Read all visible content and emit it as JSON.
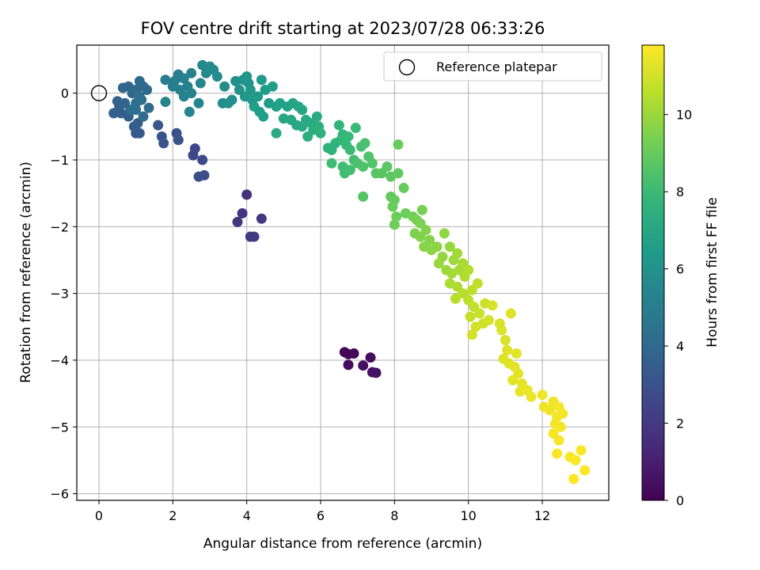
{
  "chart_data": {
    "type": "scatter",
    "title": "FOV centre drift starting at 2023/07/28 06:33:26",
    "xlabel": "Angular distance from reference (arcmin)",
    "ylabel": "Rotation from reference (arcmin)",
    "xlim": [
      -0.6,
      13.8
    ],
    "ylim": [
      -6.1,
      0.72
    ],
    "xticks": [
      0,
      2,
      4,
      6,
      8,
      10,
      12
    ],
    "yticks": [
      0,
      -1,
      -2,
      -3,
      -4,
      -5,
      -6
    ],
    "grid": true,
    "colormap": "viridis",
    "colorbar": {
      "label": "Hours from first FF file",
      "range": [
        0,
        11.8
      ],
      "ticks": [
        0,
        2,
        4,
        6,
        8,
        10
      ]
    },
    "legend": {
      "position": "top-right",
      "entries": [
        {
          "label": "Reference platepar",
          "marker": "open-circle"
        }
      ]
    },
    "reference_point": {
      "x": 0,
      "y": 0
    },
    "points": [
      {
        "x": 6.65,
        "y": -3.88,
        "c": 0.1
      },
      {
        "x": 6.75,
        "y": -3.91,
        "c": 0.2
      },
      {
        "x": 6.9,
        "y": -3.9,
        "c": 0.25
      },
      {
        "x": 6.75,
        "y": -4.07,
        "c": 0.3
      },
      {
        "x": 7.35,
        "y": -3.96,
        "c": 0.4
      },
      {
        "x": 7.15,
        "y": -4.08,
        "c": 0.45
      },
      {
        "x": 7.4,
        "y": -4.18,
        "c": 0.5
      },
      {
        "x": 7.5,
        "y": -4.19,
        "c": 0.55
      },
      {
        "x": 4.0,
        "y": -1.52,
        "c": 1.7
      },
      {
        "x": 3.88,
        "y": -1.8,
        "c": 1.8
      },
      {
        "x": 3.75,
        "y": -1.93,
        "c": 1.9
      },
      {
        "x": 4.4,
        "y": -1.88,
        "c": 1.9
      },
      {
        "x": 4.1,
        "y": -2.15,
        "c": 2.0
      },
      {
        "x": 4.2,
        "y": -2.15,
        "c": 2.05
      },
      {
        "x": 2.6,
        "y": -0.83,
        "c": 2.5
      },
      {
        "x": 2.55,
        "y": -0.93,
        "c": 2.6
      },
      {
        "x": 2.8,
        "y": -1.0,
        "c": 2.7
      },
      {
        "x": 2.7,
        "y": -1.25,
        "c": 2.8
      },
      {
        "x": 2.85,
        "y": -1.23,
        "c": 2.85
      },
      {
        "x": 2.1,
        "y": -0.6,
        "c": 3.0
      },
      {
        "x": 2.15,
        "y": -0.7,
        "c": 3.05
      },
      {
        "x": 1.7,
        "y": -0.65,
        "c": 3.1
      },
      {
        "x": 1.75,
        "y": -0.75,
        "c": 3.15
      },
      {
        "x": 1.6,
        "y": -0.48,
        "c": 3.2
      },
      {
        "x": 1.0,
        "y": -0.6,
        "c": 3.3
      },
      {
        "x": 1.1,
        "y": -0.6,
        "c": 3.35
      },
      {
        "x": 0.95,
        "y": -0.5,
        "c": 3.4
      },
      {
        "x": 1.05,
        "y": -0.45,
        "c": 3.45
      },
      {
        "x": 0.8,
        "y": -0.35,
        "c": 3.5
      },
      {
        "x": 0.6,
        "y": -0.3,
        "c": 3.55
      },
      {
        "x": 0.4,
        "y": -0.3,
        "c": 3.6
      },
      {
        "x": 0.55,
        "y": -0.2,
        "c": 3.65
      },
      {
        "x": 0.5,
        "y": -0.12,
        "c": 3.7
      },
      {
        "x": 0.7,
        "y": -0.15,
        "c": 3.75
      },
      {
        "x": 0.65,
        "y": 0.08,
        "c": 3.8
      },
      {
        "x": 0.8,
        "y": 0.1,
        "c": 3.85
      },
      {
        "x": 0.9,
        "y": 0.0,
        "c": 3.9
      },
      {
        "x": 1.0,
        "y": 0.05,
        "c": 3.95
      },
      {
        "x": 1.1,
        "y": 0.18,
        "c": 4.0
      },
      {
        "x": 1.2,
        "y": 0.1,
        "c": 4.05
      },
      {
        "x": 1.3,
        "y": 0.05,
        "c": 4.1
      },
      {
        "x": 1.15,
        "y": -0.1,
        "c": 4.1
      },
      {
        "x": 1.35,
        "y": -0.22,
        "c": 4.15
      },
      {
        "x": 1.2,
        "y": -0.35,
        "c": 4.2
      },
      {
        "x": 1.0,
        "y": -0.25,
        "c": 4.25
      },
      {
        "x": 0.85,
        "y": -0.25,
        "c": 4.3
      },
      {
        "x": 1.0,
        "y": -0.15,
        "c": 4.3
      },
      {
        "x": 1.1,
        "y": -0.05,
        "c": 4.35
      },
      {
        "x": 1.8,
        "y": 0.2,
        "c": 5.0
      },
      {
        "x": 2.0,
        "y": 0.1,
        "c": 5.05
      },
      {
        "x": 2.15,
        "y": 0.28,
        "c": 5.1
      },
      {
        "x": 2.05,
        "y": 0.18,
        "c": 5.1
      },
      {
        "x": 2.2,
        "y": 0.05,
        "c": 5.15
      },
      {
        "x": 2.3,
        "y": 0.22,
        "c": 5.2
      },
      {
        "x": 2.4,
        "y": 0.1,
        "c": 5.2
      },
      {
        "x": 2.5,
        "y": 0.3,
        "c": 5.25
      },
      {
        "x": 2.3,
        "y": -0.05,
        "c": 5.3
      },
      {
        "x": 2.5,
        "y": 0.0,
        "c": 5.3
      },
      {
        "x": 2.45,
        "y": -0.28,
        "c": 5.35
      },
      {
        "x": 2.7,
        "y": -0.15,
        "c": 5.4
      },
      {
        "x": 1.8,
        "y": -0.13,
        "c": 5.4
      },
      {
        "x": 2.75,
        "y": 0.15,
        "c": 5.45
      },
      {
        "x": 2.8,
        "y": 0.42,
        "c": 5.5
      },
      {
        "x": 2.9,
        "y": 0.3,
        "c": 5.55
      },
      {
        "x": 3.0,
        "y": 0.4,
        "c": 5.6
      },
      {
        "x": 3.1,
        "y": 0.35,
        "c": 5.65
      },
      {
        "x": 3.2,
        "y": 0.25,
        "c": 5.7
      },
      {
        "x": 3.4,
        "y": 0.1,
        "c": 5.75
      },
      {
        "x": 3.35,
        "y": -0.15,
        "c": 5.8
      },
      {
        "x": 3.6,
        "y": -0.1,
        "c": 5.85
      },
      {
        "x": 3.5,
        "y": -0.15,
        "c": 5.9
      },
      {
        "x": 3.7,
        "y": 0.18,
        "c": 5.95
      },
      {
        "x": 3.8,
        "y": 0.05,
        "c": 6.0
      },
      {
        "x": 3.9,
        "y": 0.2,
        "c": 6.05
      },
      {
        "x": 4.0,
        "y": 0.25,
        "c": 6.1
      },
      {
        "x": 4.05,
        "y": 0.15,
        "c": 6.15
      },
      {
        "x": 4.1,
        "y": 0.05,
        "c": 6.2
      },
      {
        "x": 3.95,
        "y": -0.05,
        "c": 6.25
      },
      {
        "x": 4.15,
        "y": -0.1,
        "c": 6.3
      },
      {
        "x": 4.3,
        "y": -0.05,
        "c": 6.35
      },
      {
        "x": 4.4,
        "y": 0.2,
        "c": 6.4
      },
      {
        "x": 4.5,
        "y": 0.05,
        "c": 6.45
      },
      {
        "x": 4.6,
        "y": -0.15,
        "c": 6.5
      },
      {
        "x": 4.35,
        "y": -0.28,
        "c": 6.55
      },
      {
        "x": 4.45,
        "y": -0.35,
        "c": 6.6
      },
      {
        "x": 4.2,
        "y": -0.2,
        "c": 6.6
      },
      {
        "x": 4.7,
        "y": 0.1,
        "c": 6.65
      },
      {
        "x": 4.8,
        "y": -0.2,
        "c": 6.7
      },
      {
        "x": 4.9,
        "y": -0.15,
        "c": 6.75
      },
      {
        "x": 5.1,
        "y": -0.2,
        "c": 6.8
      },
      {
        "x": 5.25,
        "y": -0.15,
        "c": 6.85
      },
      {
        "x": 5.4,
        "y": -0.2,
        "c": 6.9
      },
      {
        "x": 5.5,
        "y": -0.25,
        "c": 6.95
      },
      {
        "x": 5.0,
        "y": -0.38,
        "c": 7.0
      },
      {
        "x": 5.2,
        "y": -0.4,
        "c": 7.05
      },
      {
        "x": 5.35,
        "y": -0.48,
        "c": 7.1
      },
      {
        "x": 5.5,
        "y": -0.5,
        "c": 7.15
      },
      {
        "x": 4.8,
        "y": -0.6,
        "c": 7.2
      },
      {
        "x": 5.6,
        "y": -0.4,
        "c": 7.2
      },
      {
        "x": 5.75,
        "y": -0.45,
        "c": 7.25
      },
      {
        "x": 5.9,
        "y": -0.35,
        "c": 7.3
      },
      {
        "x": 5.8,
        "y": -0.55,
        "c": 7.35
      },
      {
        "x": 5.65,
        "y": -0.65,
        "c": 7.4
      },
      {
        "x": 5.95,
        "y": -0.5,
        "c": 7.45
      },
      {
        "x": 6.0,
        "y": -0.6,
        "c": 7.5
      },
      {
        "x": 6.2,
        "y": -0.82,
        "c": 7.55
      },
      {
        "x": 6.3,
        "y": -0.85,
        "c": 7.6
      },
      {
        "x": 6.4,
        "y": -0.75,
        "c": 7.65
      },
      {
        "x": 6.5,
        "y": -0.48,
        "c": 7.7
      },
      {
        "x": 6.55,
        "y": -0.7,
        "c": 7.75
      },
      {
        "x": 6.6,
        "y": -0.62,
        "c": 7.8
      },
      {
        "x": 6.7,
        "y": -0.78,
        "c": 7.85
      },
      {
        "x": 6.75,
        "y": -0.65,
        "c": 7.9
      },
      {
        "x": 6.8,
        "y": -0.85,
        "c": 7.95
      },
      {
        "x": 6.95,
        "y": -0.52,
        "c": 8.0
      },
      {
        "x": 6.3,
        "y": -1.05,
        "c": 8.05
      },
      {
        "x": 6.6,
        "y": -1.1,
        "c": 8.1
      },
      {
        "x": 6.65,
        "y": -1.2,
        "c": 8.15
      },
      {
        "x": 6.8,
        "y": -1.15,
        "c": 8.2
      },
      {
        "x": 6.9,
        "y": -1.0,
        "c": 8.25
      },
      {
        "x": 7.1,
        "y": -0.8,
        "c": 8.3
      },
      {
        "x": 7.2,
        "y": -0.75,
        "c": 8.35
      },
      {
        "x": 7.0,
        "y": -1.05,
        "c": 8.4
      },
      {
        "x": 7.15,
        "y": -1.1,
        "c": 8.45
      },
      {
        "x": 7.3,
        "y": -0.95,
        "c": 8.5
      },
      {
        "x": 7.4,
        "y": -1.05,
        "c": 8.55
      },
      {
        "x": 7.15,
        "y": -1.55,
        "c": 8.6
      },
      {
        "x": 7.5,
        "y": -1.2,
        "c": 8.65
      },
      {
        "x": 7.65,
        "y": -1.2,
        "c": 8.7
      },
      {
        "x": 7.8,
        "y": -1.1,
        "c": 8.75
      },
      {
        "x": 7.9,
        "y": -1.25,
        "c": 8.8
      },
      {
        "x": 8.1,
        "y": -1.2,
        "c": 8.85
      },
      {
        "x": 7.9,
        "y": -1.55,
        "c": 8.9
      },
      {
        "x": 8.0,
        "y": -1.6,
        "c": 8.95
      },
      {
        "x": 8.1,
        "y": -0.77,
        "c": 9.0
      },
      {
        "x": 8.25,
        "y": -1.42,
        "c": 9.0
      },
      {
        "x": 7.95,
        "y": -1.7,
        "c": 9.05
      },
      {
        "x": 8.05,
        "y": -1.85,
        "c": 9.1
      },
      {
        "x": 8.3,
        "y": -1.8,
        "c": 9.15
      },
      {
        "x": 8.0,
        "y": -1.97,
        "c": 9.2
      },
      {
        "x": 8.5,
        "y": -1.85,
        "c": 9.25
      },
      {
        "x": 8.6,
        "y": -1.9,
        "c": 9.3
      },
      {
        "x": 8.75,
        "y": -1.75,
        "c": 9.35
      },
      {
        "x": 8.7,
        "y": -1.95,
        "c": 9.4
      },
      {
        "x": 8.55,
        "y": -2.1,
        "c": 9.45
      },
      {
        "x": 8.7,
        "y": -2.15,
        "c": 9.5
      },
      {
        "x": 8.85,
        "y": -2.05,
        "c": 9.55
      },
      {
        "x": 8.95,
        "y": -2.2,
        "c": 9.6
      },
      {
        "x": 8.8,
        "y": -2.3,
        "c": 9.65
      },
      {
        "x": 9.0,
        "y": -2.35,
        "c": 9.7
      },
      {
        "x": 9.15,
        "y": -2.3,
        "c": 9.75
      },
      {
        "x": 9.35,
        "y": -2.1,
        "c": 9.8
      },
      {
        "x": 9.3,
        "y": -2.45,
        "c": 9.85
      },
      {
        "x": 9.5,
        "y": -2.3,
        "c": 9.9
      },
      {
        "x": 9.2,
        "y": -2.55,
        "c": 9.95
      },
      {
        "x": 9.4,
        "y": -2.65,
        "c": 10.0
      },
      {
        "x": 9.6,
        "y": -2.5,
        "c": 10.05
      },
      {
        "x": 9.7,
        "y": -2.4,
        "c": 10.1
      },
      {
        "x": 9.55,
        "y": -2.7,
        "c": 10.15
      },
      {
        "x": 9.75,
        "y": -2.65,
        "c": 10.2
      },
      {
        "x": 9.85,
        "y": -2.55,
        "c": 10.25
      },
      {
        "x": 9.5,
        "y": -2.85,
        "c": 10.3
      },
      {
        "x": 9.7,
        "y": -2.9,
        "c": 10.35
      },
      {
        "x": 9.9,
        "y": -2.75,
        "c": 10.4
      },
      {
        "x": 10.0,
        "y": -2.65,
        "c": 10.45
      },
      {
        "x": 9.65,
        "y": -3.08,
        "c": 10.5
      },
      {
        "x": 9.85,
        "y": -3.0,
        "c": 10.55
      },
      {
        "x": 10.0,
        "y": -3.1,
        "c": 10.6
      },
      {
        "x": 10.1,
        "y": -2.95,
        "c": 10.65
      },
      {
        "x": 10.25,
        "y": -2.85,
        "c": 10.7
      },
      {
        "x": 10.15,
        "y": -3.2,
        "c": 10.75
      },
      {
        "x": 10.05,
        "y": -3.35,
        "c": 10.8
      },
      {
        "x": 10.3,
        "y": -3.3,
        "c": 10.85
      },
      {
        "x": 10.45,
        "y": -3.15,
        "c": 10.9
      },
      {
        "x": 10.4,
        "y": -3.45,
        "c": 10.95
      },
      {
        "x": 10.2,
        "y": -3.5,
        "c": 11.0
      },
      {
        "x": 10.1,
        "y": -3.62,
        "c": 11.0
      },
      {
        "x": 10.55,
        "y": -3.4,
        "c": 11.05
      },
      {
        "x": 10.65,
        "y": -3.18,
        "c": 11.1
      },
      {
        "x": 10.85,
        "y": -3.45,
        "c": 11.1
      },
      {
        "x": 10.9,
        "y": -3.55,
        "c": 11.15
      },
      {
        "x": 11.0,
        "y": -3.7,
        "c": 11.15
      },
      {
        "x": 11.15,
        "y": -3.3,
        "c": 11.2
      },
      {
        "x": 11.05,
        "y": -3.85,
        "c": 11.2
      },
      {
        "x": 10.95,
        "y": -3.98,
        "c": 11.25
      },
      {
        "x": 11.1,
        "y": -4.05,
        "c": 11.25
      },
      {
        "x": 11.3,
        "y": -3.9,
        "c": 11.3
      },
      {
        "x": 11.25,
        "y": -4.1,
        "c": 11.3
      },
      {
        "x": 11.35,
        "y": -4.2,
        "c": 11.35
      },
      {
        "x": 11.2,
        "y": -4.3,
        "c": 11.35
      },
      {
        "x": 11.45,
        "y": -4.35,
        "c": 11.4
      },
      {
        "x": 11.4,
        "y": -4.47,
        "c": 11.4
      },
      {
        "x": 11.6,
        "y": -4.45,
        "c": 11.45
      },
      {
        "x": 11.7,
        "y": -4.55,
        "c": 11.45
      },
      {
        "x": 12.0,
        "y": -4.52,
        "c": 11.5
      },
      {
        "x": 12.05,
        "y": -4.7,
        "c": 11.5
      },
      {
        "x": 12.2,
        "y": -4.75,
        "c": 11.55
      },
      {
        "x": 12.3,
        "y": -4.62,
        "c": 11.55
      },
      {
        "x": 12.45,
        "y": -4.7,
        "c": 11.6
      },
      {
        "x": 12.4,
        "y": -4.85,
        "c": 11.6
      },
      {
        "x": 12.55,
        "y": -4.8,
        "c": 11.62
      },
      {
        "x": 12.35,
        "y": -4.95,
        "c": 11.63
      },
      {
        "x": 12.5,
        "y": -5.0,
        "c": 11.65
      },
      {
        "x": 12.3,
        "y": -5.1,
        "c": 11.66
      },
      {
        "x": 12.45,
        "y": -5.2,
        "c": 11.67
      },
      {
        "x": 12.4,
        "y": -5.4,
        "c": 11.7
      },
      {
        "x": 12.75,
        "y": -5.45,
        "c": 11.72
      },
      {
        "x": 12.9,
        "y": -5.5,
        "c": 11.74
      },
      {
        "x": 13.05,
        "y": -5.35,
        "c": 11.76
      },
      {
        "x": 13.15,
        "y": -5.65,
        "c": 11.78
      },
      {
        "x": 12.85,
        "y": -5.78,
        "c": 11.8
      }
    ]
  }
}
